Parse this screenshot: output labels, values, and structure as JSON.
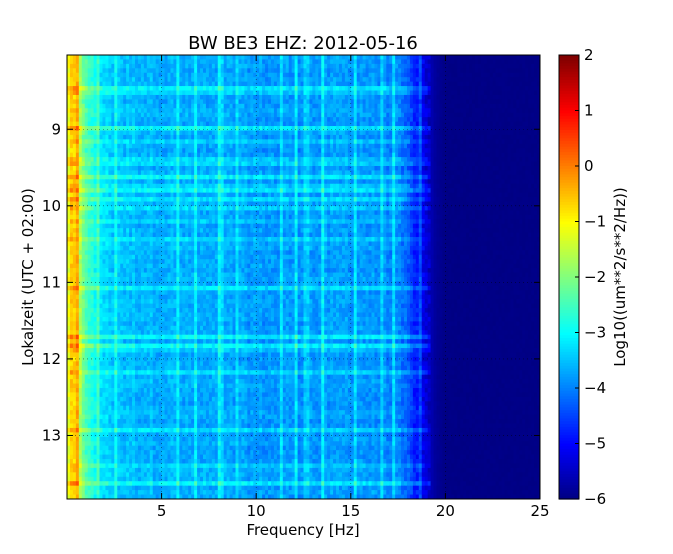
{
  "chart_data": {
    "type": "heatmap",
    "title": "BW BE3 EHZ: 2012-05-16",
    "xlabel": "Frequency [Hz]",
    "ylabel": "Lokalzeit (UTC + 02:00)",
    "xlim": [
      0,
      25
    ],
    "ylim": [
      8.03,
      13.83
    ],
    "y_inverted": true,
    "x_ticks": [
      5,
      10,
      15,
      20,
      25
    ],
    "y_ticks": [
      9,
      10,
      11,
      12,
      13
    ],
    "grid": true,
    "colormap": "jet",
    "colorbar": {
      "label": "Log10((um**2/s**2/Hz))",
      "range": [
        -6,
        2
      ],
      "ticks": [
        2,
        1,
        0,
        -1,
        -2,
        -3,
        -4,
        -5,
        -6
      ],
      "tick_labels": [
        "2",
        "1",
        "0",
        "−1",
        "−2",
        "−3",
        "−4",
        "−5",
        "−6"
      ]
    },
    "spectrum_profile": {
      "frequency_hz": [
        0,
        0.15,
        0.3,
        0.5,
        0.7,
        0.9,
        1.2,
        1.5,
        2,
        3,
        4,
        5,
        7,
        9,
        11,
        13,
        15,
        16,
        17,
        17.5,
        18,
        18.5,
        19,
        19.5,
        20,
        25
      ],
      "log10_psd": [
        -1.3,
        -0.9,
        -0.6,
        -0.8,
        -1.7,
        -2.2,
        -2.6,
        -3.0,
        -3.3,
        -3.5,
        -3.55,
        -3.6,
        -3.7,
        -3.75,
        -3.8,
        -3.8,
        -3.75,
        -3.8,
        -3.9,
        -4.0,
        -4.3,
        -4.8,
        -5.4,
        -5.8,
        -5.95,
        -5.95
      ]
    }
  }
}
